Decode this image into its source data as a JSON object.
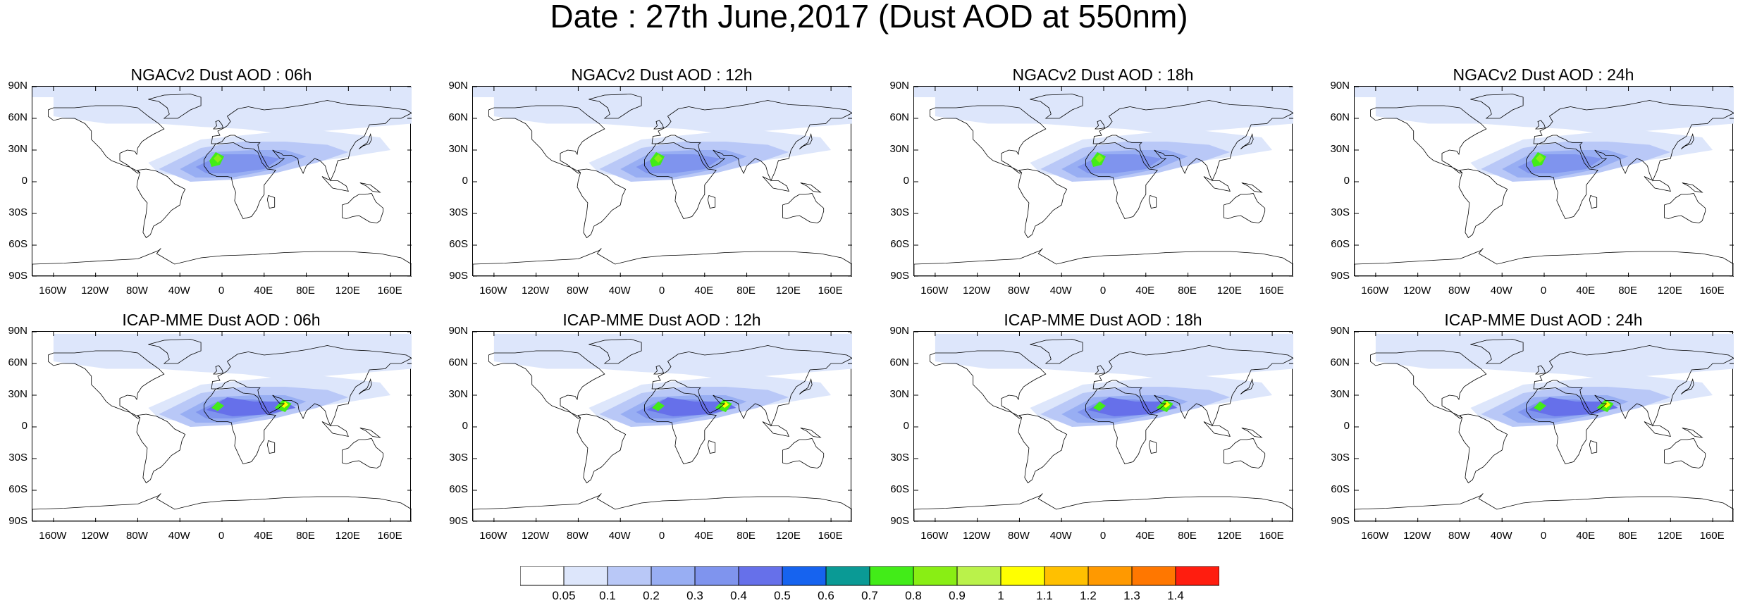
{
  "title": "Date : 27th June,2017 (Dust AOD at 550nm)",
  "panels": [
    {
      "title": "NGACv2 Dust AOD : 06h",
      "model": "NGACv2",
      "hour": "06h"
    },
    {
      "title": "NGACv2 Dust AOD : 12h",
      "model": "NGACv2",
      "hour": "12h"
    },
    {
      "title": "NGACv2 Dust AOD : 18h",
      "model": "NGACv2",
      "hour": "18h"
    },
    {
      "title": "NGACv2 Dust AOD : 24h",
      "model": "NGACv2",
      "hour": "24h"
    },
    {
      "title": "ICAP-MME Dust AOD : 06h",
      "model": "ICAP-MME",
      "hour": "06h"
    },
    {
      "title": "ICAP-MME Dust AOD : 12h",
      "model": "ICAP-MME",
      "hour": "12h"
    },
    {
      "title": "ICAP-MME Dust AOD : 18h",
      "model": "ICAP-MME",
      "hour": "18h"
    },
    {
      "title": "ICAP-MME Dust AOD : 24h",
      "model": "ICAP-MME",
      "hour": "24h"
    }
  ],
  "lat_labels": [
    "90N",
    "60N",
    "30N",
    "0",
    "30S",
    "60S",
    "90S"
  ],
  "lon_labels": [
    "160W",
    "120W",
    "80W",
    "40W",
    "0",
    "40E",
    "80E",
    "120E",
    "160E"
  ],
  "lon_values": [
    -160,
    -120,
    -80,
    -40,
    0,
    40,
    80,
    120,
    160
  ],
  "lat_values": [
    90,
    60,
    30,
    0,
    -30,
    -60,
    -90
  ],
  "colorbar": {
    "levels": [
      "0.05",
      "0.1",
      "0.2",
      "0.3",
      "0.4",
      "0.5",
      "0.6",
      "0.7",
      "0.8",
      "0.9",
      "1",
      "1.1",
      "1.2",
      "1.3",
      "1.4"
    ],
    "colors": [
      "#ffffff",
      "#dde6fb",
      "#b9c8f7",
      "#98aef3",
      "#7f94ee",
      "#6670ea",
      "#1663ef",
      "#0a9a95",
      "#42ec18",
      "#89ee14",
      "#baf24a",
      "#ffff00",
      "#ffc000",
      "#ff9900",
      "#ff7700",
      "#ff1d0f"
    ]
  }
}
